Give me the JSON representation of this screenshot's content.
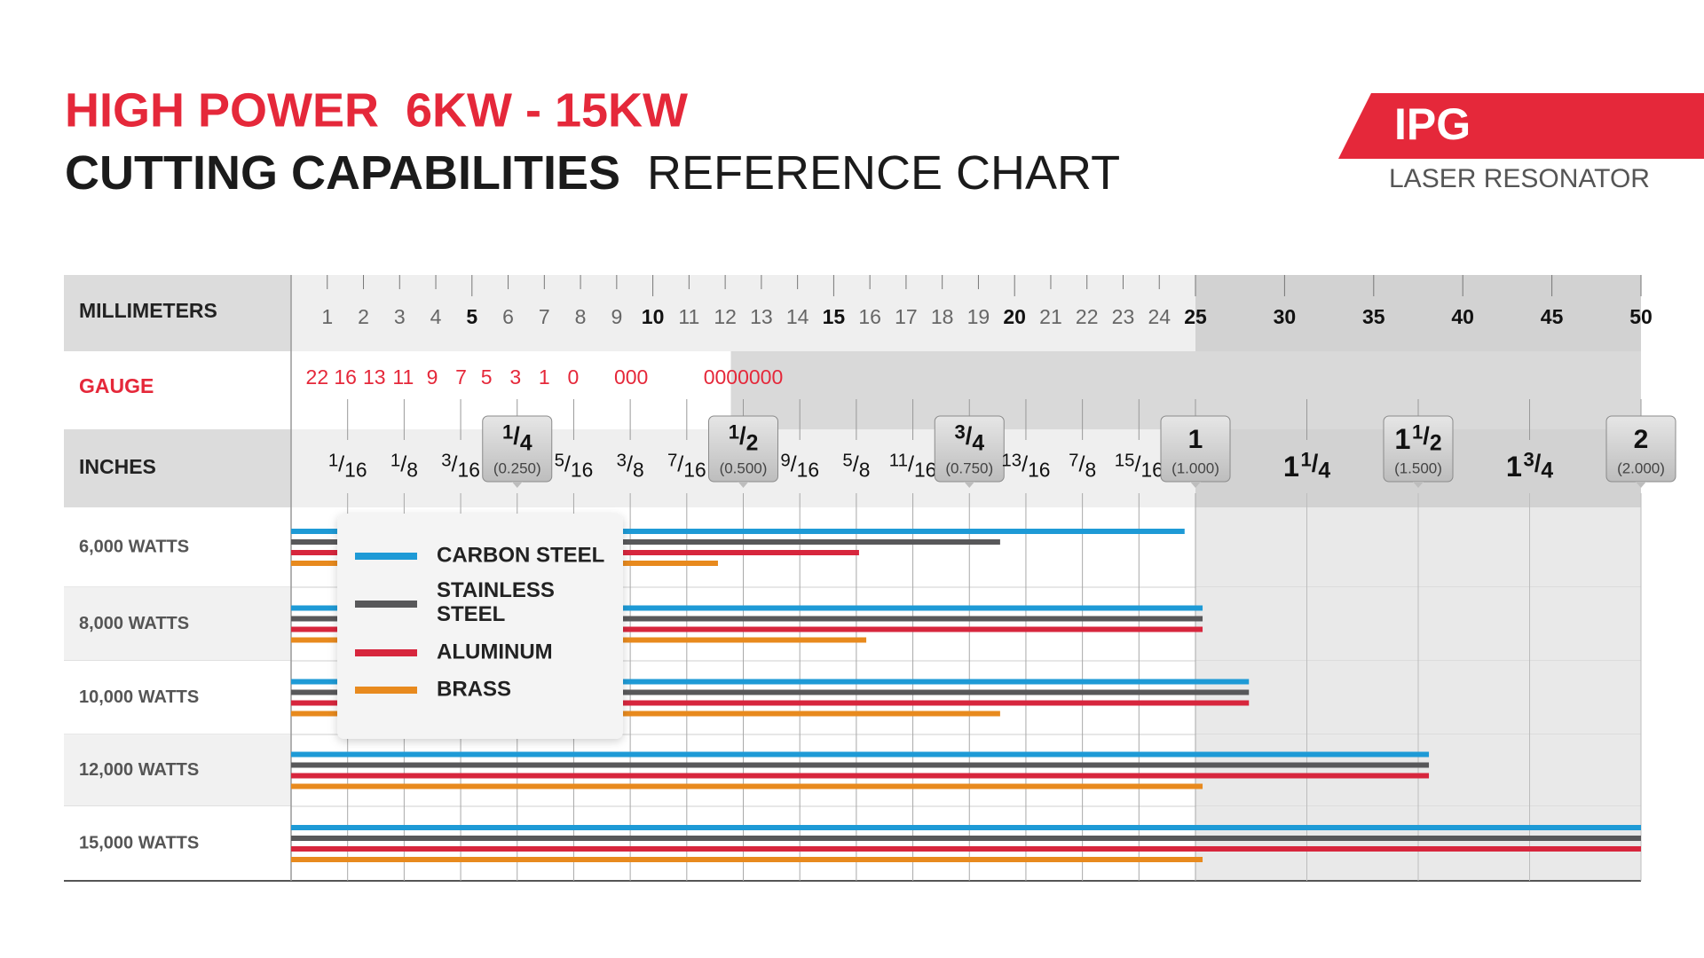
{
  "chart_data": {
    "type": "bar",
    "orientation": "horizontal",
    "title": "HIGH POWER  6KW - 15KW",
    "subtitle": {
      "bold": "CUTTING CAPABILITIES",
      "regular": "REFERENCE CHART"
    },
    "brand": {
      "name": "IPG",
      "tagline": "LASER RESONATOR"
    },
    "xlabel": "MILLIMETERS",
    "xlim": [
      0,
      50
    ],
    "xbreak": 25,
    "xticks": [
      1,
      2,
      3,
      4,
      5,
      6,
      7,
      8,
      9,
      10,
      11,
      12,
      13,
      14,
      15,
      16,
      17,
      18,
      19,
      20,
      21,
      22,
      23,
      24,
      25,
      30,
      35,
      40,
      45,
      50
    ],
    "gauge": {
      "label": "GAUGE",
      "labels": [
        "22",
        "16",
        "13",
        "11",
        "9",
        "7",
        "5",
        "3",
        "1",
        "0",
        "000",
        "0000000"
      ],
      "x": [
        0.72,
        1.5,
        2.3,
        3.1,
        3.9,
        4.7,
        5.4,
        6.2,
        7.0,
        7.8,
        9.4,
        12.5
      ]
    },
    "x2label": "INCHES",
    "x2lim": [
      0,
      2
    ],
    "x2break": 1,
    "x2ticks": [
      {
        "value": 0.0625,
        "label": "1/16"
      },
      {
        "value": 0.125,
        "label": "1/8"
      },
      {
        "value": 0.1875,
        "label": "3/16"
      },
      {
        "value": 0.25,
        "label": "1/4",
        "callout": "(0.250)"
      },
      {
        "value": 0.3125,
        "label": "5/16"
      },
      {
        "value": 0.375,
        "label": "3/8"
      },
      {
        "value": 0.4375,
        "label": "7/16"
      },
      {
        "value": 0.5,
        "label": "1/2",
        "callout": "(0.500)"
      },
      {
        "value": 0.5625,
        "label": "9/16"
      },
      {
        "value": 0.625,
        "label": "5/8"
      },
      {
        "value": 0.6875,
        "label": "11/16"
      },
      {
        "value": 0.75,
        "label": "3/4",
        "callout": "(0.750)"
      },
      {
        "value": 0.8125,
        "label": "13/16"
      },
      {
        "value": 0.875,
        "label": "7/8"
      },
      {
        "value": 0.9375,
        "label": "15/16"
      },
      {
        "value": 1,
        "callout": "(1.000)"
      },
      {
        "value": 1.25,
        "label": "1 1/4"
      },
      {
        "value": 1.5,
        "label": "1 1/2",
        "callout": "(1.500)"
      },
      {
        "value": 1.75,
        "label": "1 3/4"
      },
      {
        "value": 2,
        "callout": "(2.000)"
      }
    ],
    "categories": [
      "6,000 WATTS",
      "8,000 WATTS",
      "10,000 WATTS",
      "12,000 WATTS",
      "15,000 WATTS"
    ],
    "series": [
      {
        "name": "CARBON STEEL",
        "color": "#1e9ad6",
        "values": [
          24.7,
          25.4,
          28,
          38.1,
          50
        ]
      },
      {
        "name": "STAINLESS STEEL",
        "color": "#58585a",
        "values": [
          19.6,
          25.4,
          28,
          38.1,
          50
        ]
      },
      {
        "name": "ALUMINUM",
        "color": "#d7263d",
        "values": [
          15.7,
          25.4,
          28,
          38.1,
          50
        ]
      },
      {
        "name": "BRASS",
        "color": "#e88a1e",
        "values": [
          11.8,
          15.9,
          19.6,
          25.4,
          25.4
        ]
      }
    ],
    "legend": "upper-left",
    "grid": true
  }
}
